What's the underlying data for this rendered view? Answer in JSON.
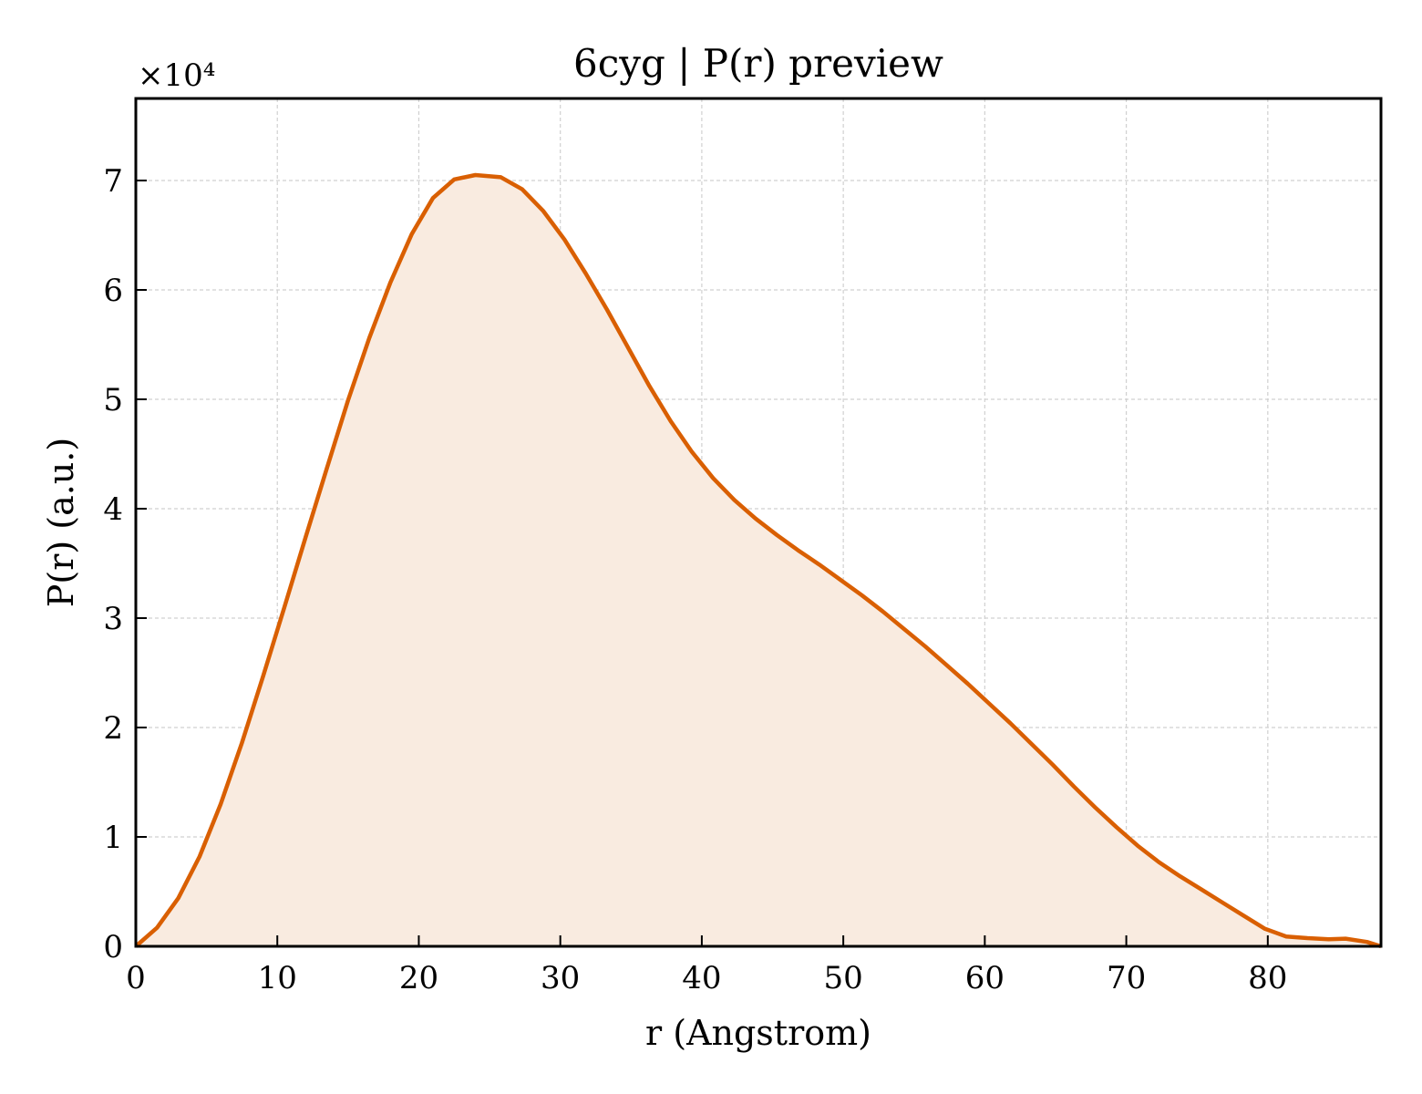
{
  "chart_data": {
    "type": "area",
    "title": "6cyg | P(r) preview",
    "xlabel": "r (Angstrom)",
    "ylabel": "P(r) (a.u.)",
    "y_offset_label": "×10⁴",
    "y_scale": 10000,
    "xlim": [
      0,
      88
    ],
    "ylim": [
      0,
      77500
    ],
    "x_ticks": [
      0,
      10,
      20,
      30,
      40,
      50,
      60,
      70,
      80
    ],
    "y_ticks": [
      0,
      1,
      2,
      3,
      4,
      5,
      6,
      7
    ],
    "grid": true,
    "line_color": "#d95f02",
    "fill_color": "#f9ebe0",
    "series": [
      {
        "x": [
          0,
          1.5,
          3.0,
          4.5,
          6.0,
          7.5,
          9.0,
          10.5,
          12.0,
          13.5,
          15.0,
          16.5,
          18.0,
          19.5,
          21.0,
          22.5,
          24.0,
          25.8,
          27.3,
          28.8,
          30.3,
          31.8,
          33.3,
          34.8,
          36.3,
          37.8,
          39.3,
          40.8,
          42.3,
          43.8,
          45.3,
          46.8,
          48.3,
          49.8,
          51.3,
          52.8,
          54.3,
          55.8,
          57.3,
          58.8,
          60.3,
          61.8,
          63.3,
          64.8,
          66.3,
          67.8,
          69.3,
          70.8,
          72.3,
          73.8,
          75.3,
          76.8,
          78.3,
          79.8,
          81.3,
          82.8,
          84.3,
          85.5,
          87.0,
          88.0
        ],
        "y": [
          0,
          1700,
          4400,
          8200,
          13000,
          18600,
          24700,
          31000,
          37400,
          43700,
          49900,
          55600,
          60700,
          65100,
          68400,
          70100,
          70500,
          70300,
          69200,
          67200,
          64600,
          61500,
          58200,
          54700,
          51200,
          48000,
          45200,
          42800,
          40800,
          39100,
          37600,
          36200,
          34900,
          33500,
          32100,
          30600,
          29000,
          27400,
          25700,
          24000,
          22200,
          20400,
          18500,
          16600,
          14600,
          12700,
          10900,
          9200,
          7700,
          6400,
          5200,
          4000,
          2800,
          1600,
          900,
          750,
          650,
          700,
          400,
          0
        ]
      }
    ]
  }
}
